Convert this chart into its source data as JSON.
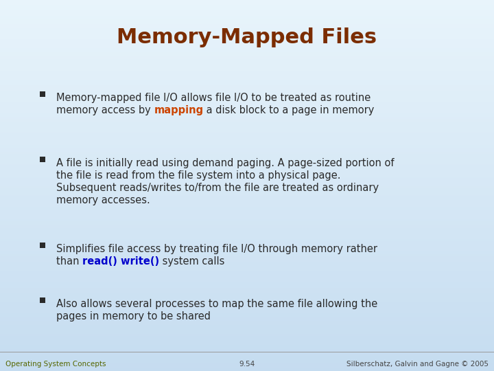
{
  "title": "Memory-Mapped Files",
  "title_color": "#7B2D00",
  "title_fontsize": 22,
  "bg_color_top": "#E8F4FB",
  "bg_color_bottom": "#C5DCF0",
  "bullet_color": "#2A2A2A",
  "bullet_marker_color": "#2A2A2A",
  "highlight_color_orange": "#CC4400",
  "highlight_color_blue": "#0000CC",
  "body_fontsize": 10.5,
  "footer_fontsize": 7.5,
  "footer_left_color": "#556600",
  "footer_center_color": "#444444",
  "footer_right_color": "#444444",
  "bullets": [
    {
      "lines": [
        [
          {
            "t": "Memory-mapped file I/O allows file I/O to be treated as routine",
            "style": "normal"
          }
        ],
        [
          {
            "t": "memory access by ",
            "style": "normal"
          },
          {
            "t": "mapping",
            "style": "orange"
          },
          {
            "t": " a disk block to a page in memory",
            "style": "normal"
          }
        ]
      ]
    },
    {
      "lines": [
        [
          {
            "t": "A file is initially read using demand paging. A page-sized portion of",
            "style": "normal"
          }
        ],
        [
          {
            "t": "the file is read from the file system into a physical page.",
            "style": "normal"
          }
        ],
        [
          {
            "t": "Subsequent reads/writes to/from the file are treated as ordinary",
            "style": "normal"
          }
        ],
        [
          {
            "t": "memory accesses.",
            "style": "normal"
          }
        ]
      ]
    },
    {
      "lines": [
        [
          {
            "t": "Simplifies file access by treating file I/O through memory rather",
            "style": "normal"
          }
        ],
        [
          {
            "t": "than ",
            "style": "normal"
          },
          {
            "t": "read() write()",
            "style": "blue"
          },
          {
            "t": " system calls",
            "style": "normal"
          }
        ]
      ]
    },
    {
      "lines": [
        [
          {
            "t": "Also allows several processes to map the same file allowing the",
            "style": "normal"
          }
        ],
        [
          {
            "t": "pages in memory to be shared",
            "style": "normal"
          }
        ]
      ]
    }
  ],
  "footer_left": "Operating System Concepts",
  "footer_center": "9.54",
  "footer_right": "Silberschatz, Galvin and Gagne © 2005"
}
